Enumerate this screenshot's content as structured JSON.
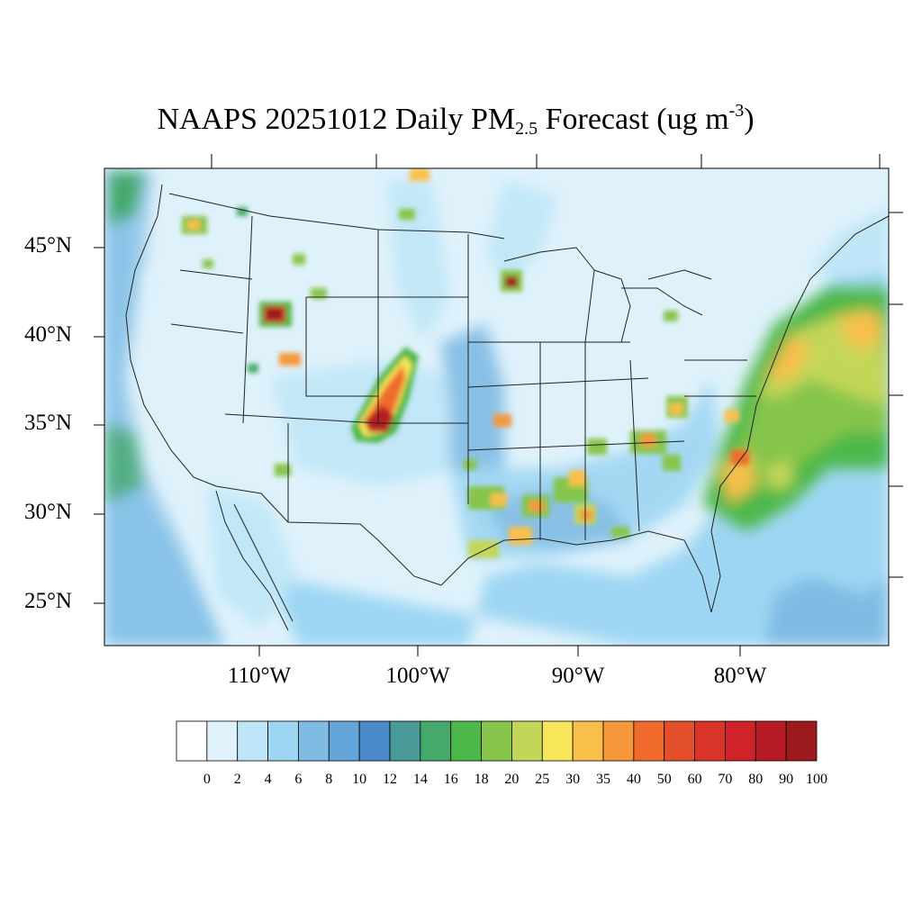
{
  "title": {
    "prefix": "NAAPS 20251012 Daily PM",
    "subscript": "2.5",
    "middle": " Forecast (ug m",
    "superscript": "-3",
    "suffix": ")"
  },
  "lat_labels": [
    "45°N",
    "40°N",
    "35°N",
    "30°N",
    "25°N"
  ],
  "lon_labels": [
    "110°W",
    "100°W",
    "90°W",
    "80°W"
  ],
  "colorbar": {
    "labels": [
      "0",
      "2",
      "4",
      "6",
      "8",
      "10",
      "12",
      "14",
      "16",
      "18",
      "20",
      "25",
      "30",
      "35",
      "40",
      "50",
      "60",
      "70",
      "80",
      "90",
      "100"
    ],
    "colors": [
      "#ffffff",
      "#dff2fb",
      "#bfe6f8",
      "#9dd6f3",
      "#7fbbe3",
      "#63a5d9",
      "#4b8ac8",
      "#4b9a9a",
      "#45a96b",
      "#4cb84a",
      "#86c54b",
      "#c4d659",
      "#f7e65a",
      "#f9bf4b",
      "#f6973b",
      "#f06a2b",
      "#e44f2b",
      "#da3428",
      "#cf2329",
      "#b71c24",
      "#9c1a1e"
    ]
  },
  "map": {
    "description_colors": {
      "land_base": "#dff2fb",
      "ocean_base": "#9dd6f3"
    }
  }
}
